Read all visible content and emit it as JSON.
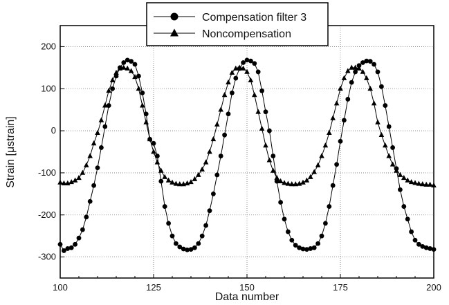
{
  "chart_data": {
    "type": "line",
    "title": "",
    "xlabel": "Data number",
    "ylabel": "Strain [μstrain]",
    "xlim": [
      100,
      200
    ],
    "ylim": [
      -350,
      250
    ],
    "x_ticks": [
      100,
      125,
      150,
      175,
      200
    ],
    "y_ticks": [
      -300,
      -200,
      -100,
      0,
      100,
      200
    ],
    "grid": true,
    "legend_position": "top-center",
    "series": [
      {
        "name": "Compensation filter 3",
        "marker": "circle",
        "color": "#000000",
        "x": [
          100,
          101,
          102,
          103,
          104,
          105,
          106,
          107,
          108,
          109,
          110,
          111,
          112,
          113,
          114,
          115,
          116,
          117,
          118,
          119,
          120,
          121,
          122,
          123,
          124,
          125,
          126,
          127,
          128,
          129,
          130,
          131,
          132,
          133,
          134,
          135,
          136,
          137,
          138,
          139,
          140,
          141,
          142,
          143,
          144,
          145,
          146,
          147,
          148,
          149,
          150,
          151,
          152,
          153,
          154,
          155,
          156,
          157,
          158,
          159,
          160,
          161,
          162,
          163,
          164,
          165,
          166,
          167,
          168,
          169,
          170,
          171,
          172,
          173,
          174,
          175,
          176,
          177,
          178,
          179,
          180,
          181,
          182,
          183,
          184,
          185,
          186,
          187,
          188,
          189,
          190,
          191,
          192,
          193,
          194,
          195,
          196,
          197,
          198,
          199,
          200
        ],
        "y": [
          -270,
          -285,
          -280,
          -278,
          -270,
          -255,
          -235,
          -205,
          -168,
          -130,
          -88,
          -40,
          10,
          60,
          100,
          130,
          150,
          162,
          168,
          165,
          158,
          130,
          90,
          40,
          -20,
          -30,
          -60,
          -120,
          -180,
          -220,
          -250,
          -268,
          -276,
          -281,
          -283,
          -282,
          -278,
          -268,
          -250,
          -225,
          -190,
          -150,
          -105,
          -60,
          -10,
          40,
          90,
          125,
          148,
          162,
          168,
          166,
          160,
          140,
          95,
          45,
          0,
          -60,
          -120,
          -170,
          -210,
          -240,
          -260,
          -272,
          -278,
          -281,
          -282,
          -280,
          -278,
          -268,
          -250,
          -220,
          -180,
          -130,
          -80,
          -25,
          25,
          75,
          115,
          140,
          155,
          162,
          166,
          165,
          158,
          140,
          105,
          60,
          10,
          -40,
          -90,
          -140,
          -180,
          -210,
          -240,
          -260,
          -270,
          -275,
          -278,
          -280,
          -282
        ]
      },
      {
        "name": "Noncompensation",
        "marker": "triangle",
        "color": "#000000",
        "x": [
          100,
          101,
          102,
          103,
          104,
          105,
          106,
          107,
          108,
          109,
          110,
          111,
          112,
          113,
          114,
          115,
          116,
          117,
          118,
          119,
          120,
          121,
          122,
          123,
          124,
          125,
          126,
          127,
          128,
          129,
          130,
          131,
          132,
          133,
          134,
          135,
          136,
          137,
          138,
          139,
          140,
          141,
          142,
          143,
          144,
          145,
          146,
          147,
          148,
          149,
          150,
          151,
          152,
          153,
          154,
          155,
          156,
          157,
          158,
          159,
          160,
          161,
          162,
          163,
          164,
          165,
          166,
          167,
          168,
          169,
          170,
          171,
          172,
          173,
          174,
          175,
          176,
          177,
          178,
          179,
          180,
          181,
          182,
          183,
          184,
          185,
          186,
          187,
          188,
          189,
          190,
          191,
          192,
          193,
          194,
          195,
          196,
          197,
          198,
          199,
          200
        ],
        "y": [
          -123,
          -125,
          -125,
          -122,
          -118,
          -112,
          -100,
          -82,
          -60,
          -30,
          -5,
          25,
          60,
          95,
          120,
          138,
          148,
          150,
          148,
          142,
          128,
          100,
          60,
          20,
          -20,
          -50,
          -75,
          -95,
          -110,
          -118,
          -123,
          -126,
          -127,
          -127,
          -125,
          -122,
          -115,
          -105,
          -92,
          -75,
          -50,
          -20,
          15,
          50,
          85,
          115,
          138,
          148,
          150,
          148,
          140,
          120,
          85,
          45,
          5,
          -35,
          -70,
          -95,
          -112,
          -120,
          -124,
          -126,
          -127,
          -127,
          -126,
          -123,
          -118,
          -110,
          -98,
          -82,
          -60,
          -35,
          -5,
          30,
          65,
          100,
          125,
          142,
          150,
          150,
          148,
          140,
          125,
          100,
          65,
          20,
          -10,
          -35,
          -60,
          -80,
          -95,
          -105,
          -112,
          -118,
          -122,
          -124,
          -126,
          -127,
          -128,
          -128,
          -130
        ]
      }
    ]
  }
}
